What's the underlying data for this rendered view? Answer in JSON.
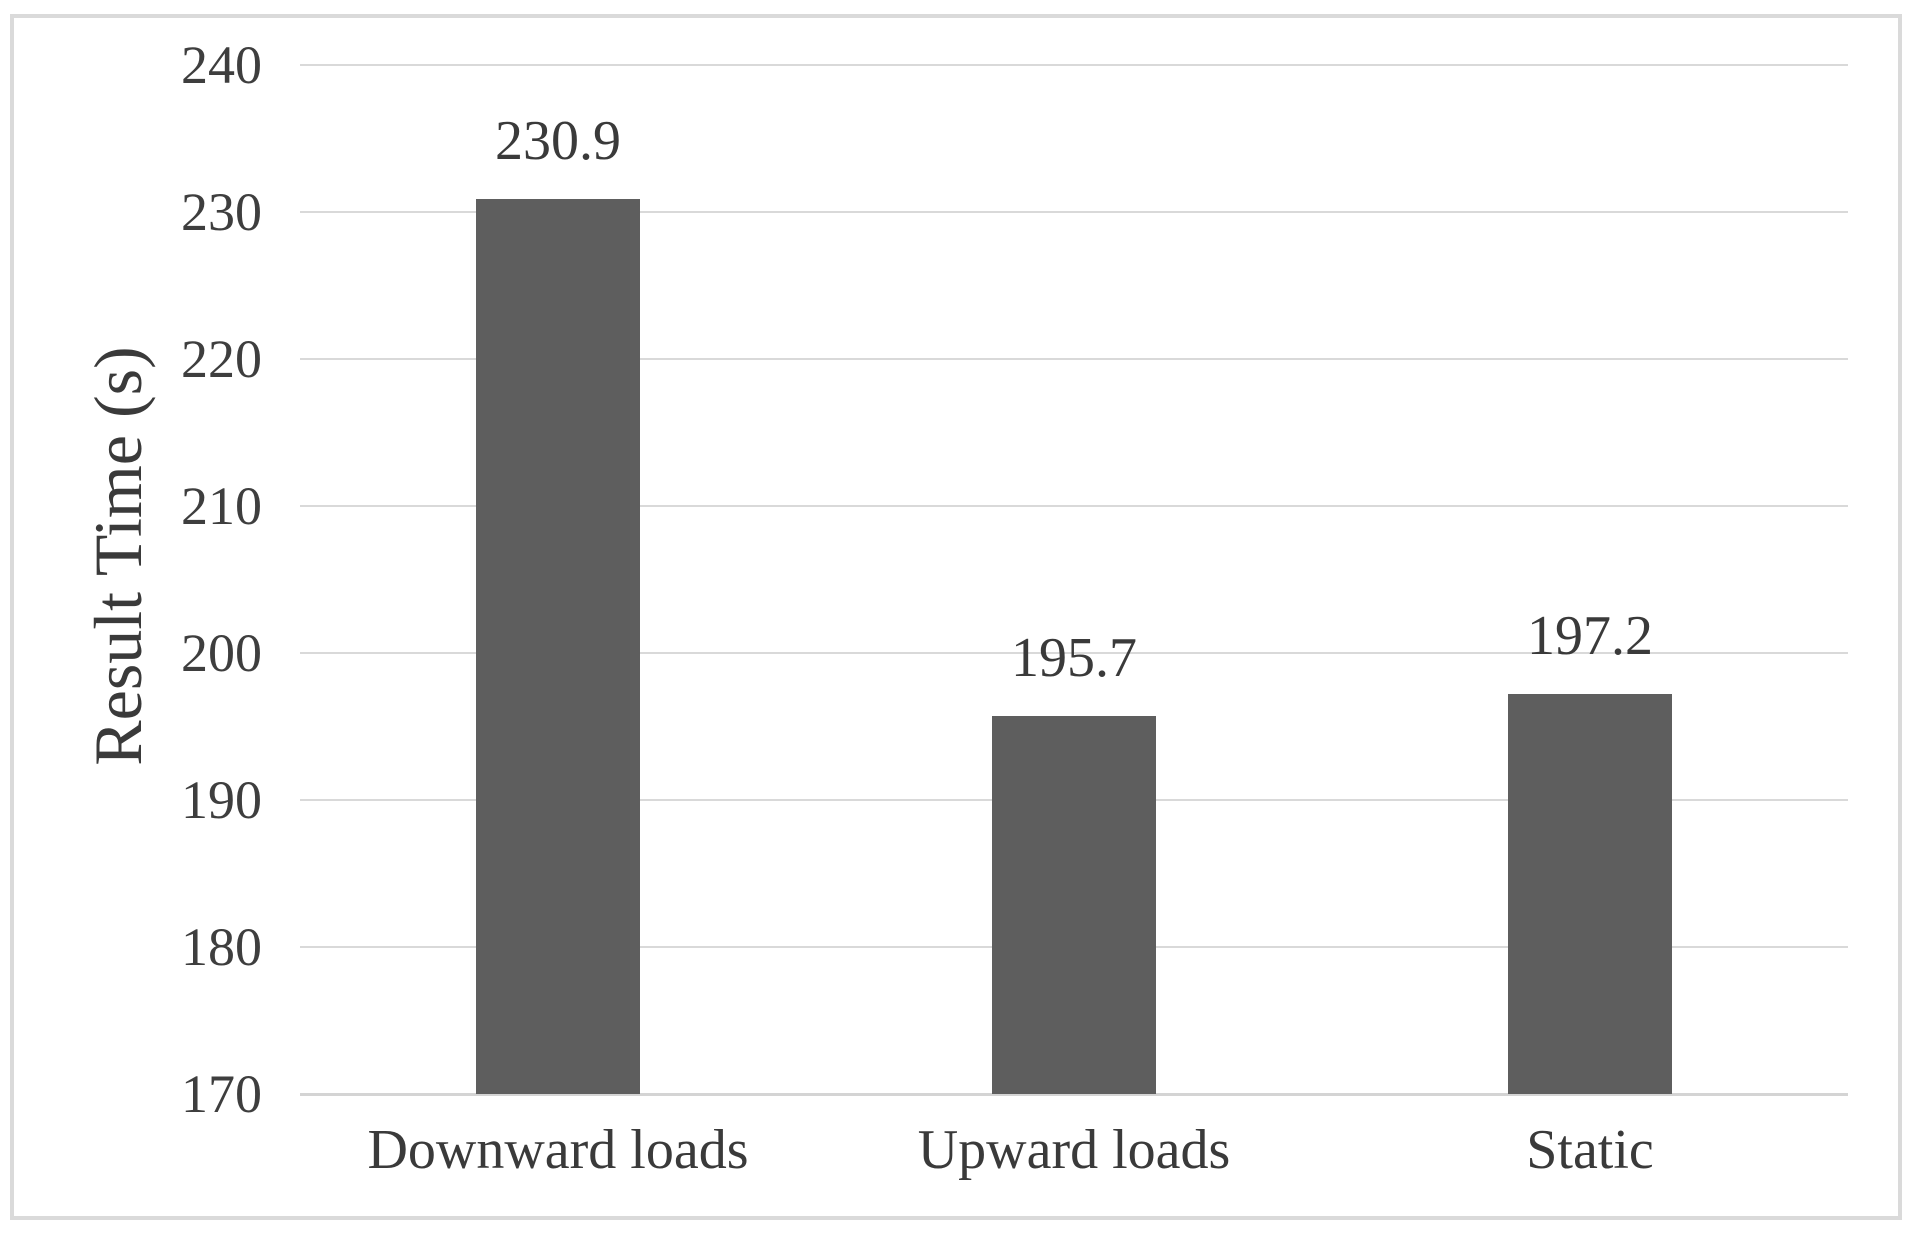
{
  "chart_data": {
    "type": "bar",
    "title": "",
    "categories": [
      "Downward loads",
      "Upward loads",
      "Static"
    ],
    "values": [
      230.9,
      195.7,
      197.2
    ],
    "data_labels": [
      "230.9",
      "195.7",
      "197.2"
    ],
    "xlabel": "",
    "ylabel": "Result Time (s)",
    "ylim": [
      170,
      240
    ],
    "yticks": [
      170,
      180,
      190,
      200,
      210,
      220,
      230,
      240
    ],
    "grid": "horizontal-only",
    "legend_position": "none",
    "colors": {
      "bar_fill": "#5e5e5e",
      "gridline": "#d9d9d9",
      "axis_line": "#d4d4d4",
      "text": "#3a3a3a",
      "frame_border": "#dadada",
      "background": "#ffffff"
    }
  }
}
